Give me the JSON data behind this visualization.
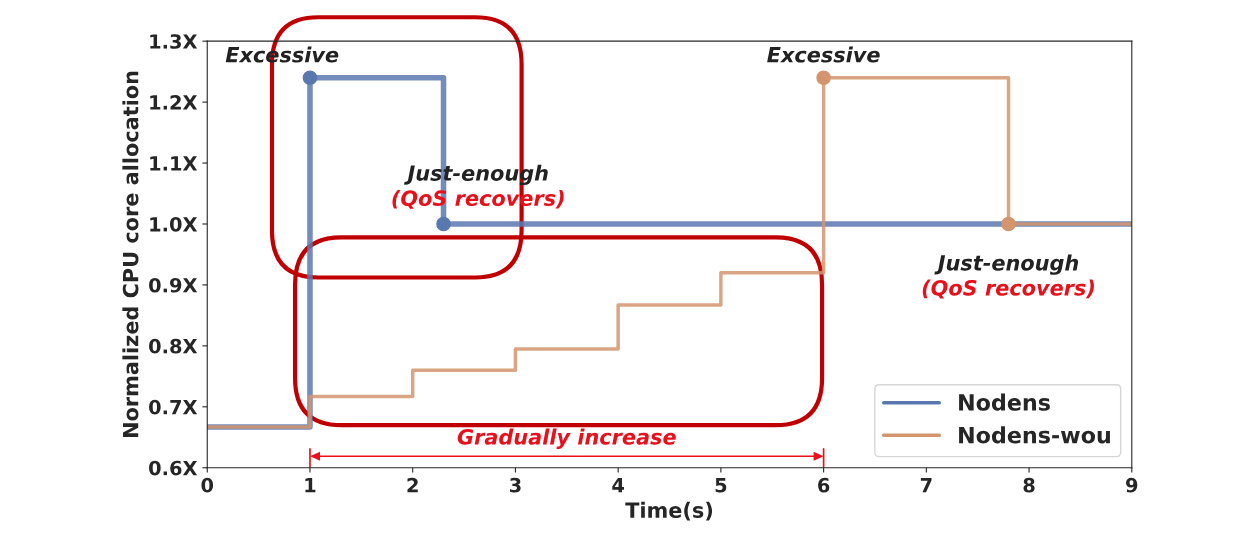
{
  "chart_data": {
    "type": "step",
    "xlabel": "Time(s)",
    "ylabel": "Normalized CPU core allocation",
    "series": [
      {
        "name": "Nodens",
        "color": "#5a78b0",
        "x": [
          0,
          1,
          2.3,
          9
        ],
        "values": [
          0.667,
          1.24,
          1.0,
          1.0
        ]
      },
      {
        "name": "Nodens-wou",
        "color": "#d4956e",
        "x": [
          0,
          1,
          2,
          3,
          4,
          5,
          6,
          7.8,
          9
        ],
        "values": [
          0.667,
          0.717,
          0.76,
          0.795,
          0.867,
          0.92,
          1.24,
          1.0,
          1.0
        ]
      },
      {
        "type": "scatter",
        "color": "#5a78b0",
        "x": [
          1,
          2.3
        ],
        "values": [
          1.24,
          1.0
        ],
        "marker": "circle"
      },
      {
        "type": "scatter",
        "color": "#d4956e",
        "x": [
          6,
          7.8
        ],
        "values": [
          1.24,
          1.0
        ],
        "marker": "circle"
      }
    ],
    "xlim": [
      0,
      9
    ],
    "xticks": [
      0,
      1,
      2,
      3,
      4,
      5,
      6,
      7,
      8,
      9
    ],
    "ylim": [
      0.6,
      1.3
    ],
    "yticks": [
      {
        "value": 0.6,
        "label": "0.6X"
      },
      {
        "value": 0.7,
        "label": "0.7X"
      },
      {
        "value": 0.8,
        "label": "0.8X"
      },
      {
        "value": 0.9,
        "label": "0.9X"
      },
      {
        "value": 1.0,
        "label": "1.0X"
      },
      {
        "value": 1.1,
        "label": "1.1X"
      },
      {
        "value": 1.2,
        "label": "1.2X"
      },
      {
        "value": 1.3,
        "label": "1.3X"
      }
    ],
    "annotations": [
      {
        "text": "Excessive",
        "x": 1,
        "y": 1.24
      },
      {
        "text": "Just-enough",
        "x": 2.3,
        "y": 1.0
      },
      {
        "text": "(QoS recovers)",
        "x": 2.3,
        "y": 1.0
      },
      {
        "text": "Excessive",
        "x": 6,
        "y": 1.24
      },
      {
        "text": "Just-enough",
        "x": 7.8,
        "y": 1.0
      },
      {
        "text": "(QoS recovers)",
        "x": 7.8,
        "y": 1.0
      },
      {
        "text": "Gradually increase"
      }
    ],
    "legend": "bottom right",
    "grid": false
  }
}
